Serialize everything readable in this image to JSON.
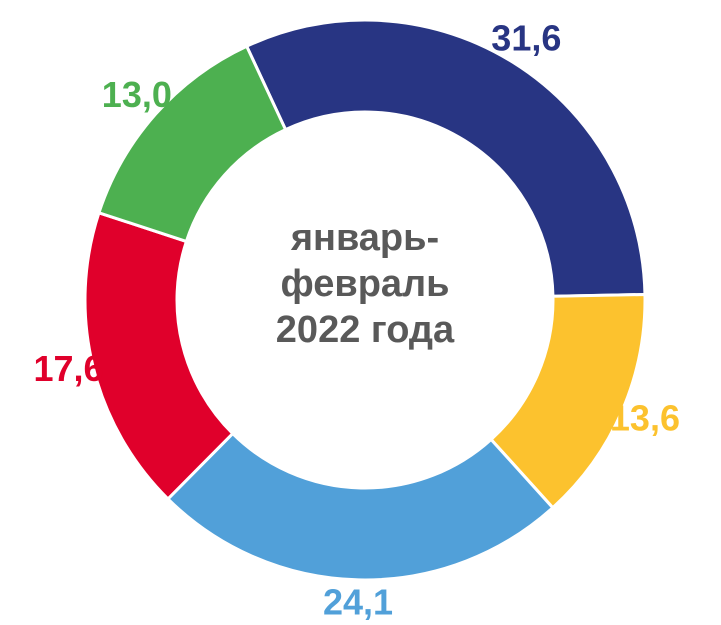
{
  "chart_data": {
    "type": "donut",
    "title": "январь-февраль 2022 года",
    "values": [
      31.6,
      13.6,
      24.1,
      17.6,
      13.0
    ],
    "value_labels": [
      "31,6",
      "13,6",
      "24,1",
      "17,6",
      "13,0"
    ],
    "colors": [
      "#283583",
      "#fcc22e",
      "#51a0d9",
      "#e0002b",
      "#4db050"
    ]
  }
}
